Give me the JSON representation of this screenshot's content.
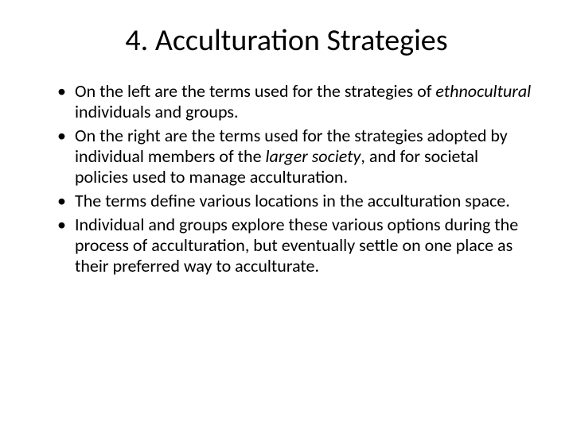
{
  "title": "4. Acculturation Strategies",
  "bullets": [
    {
      "pre": "On the left  are the terms used for the strategies of ",
      "em": "ethnocultural",
      "post": " individuals and groups."
    },
    {
      "pre": "On the right are the terms used for the strategies adopted by individual members of the ",
      "em": "larger society",
      "post": ", and for societal policies used to manage acculturation."
    },
    {
      "pre": "The terms define various locations in the acculturation space.",
      "em": "",
      "post": ""
    },
    {
      "pre": "Individual and groups explore these various options during the process of acculturation, but eventually settle on one place as their preferred way to acculturate.",
      "em": "",
      "post": ""
    }
  ],
  "style": {
    "background_color": "#ffffff",
    "text_color": "#000000",
    "title_fontsize": 38,
    "body_fontsize": 22,
    "font_family": "Calibri"
  }
}
